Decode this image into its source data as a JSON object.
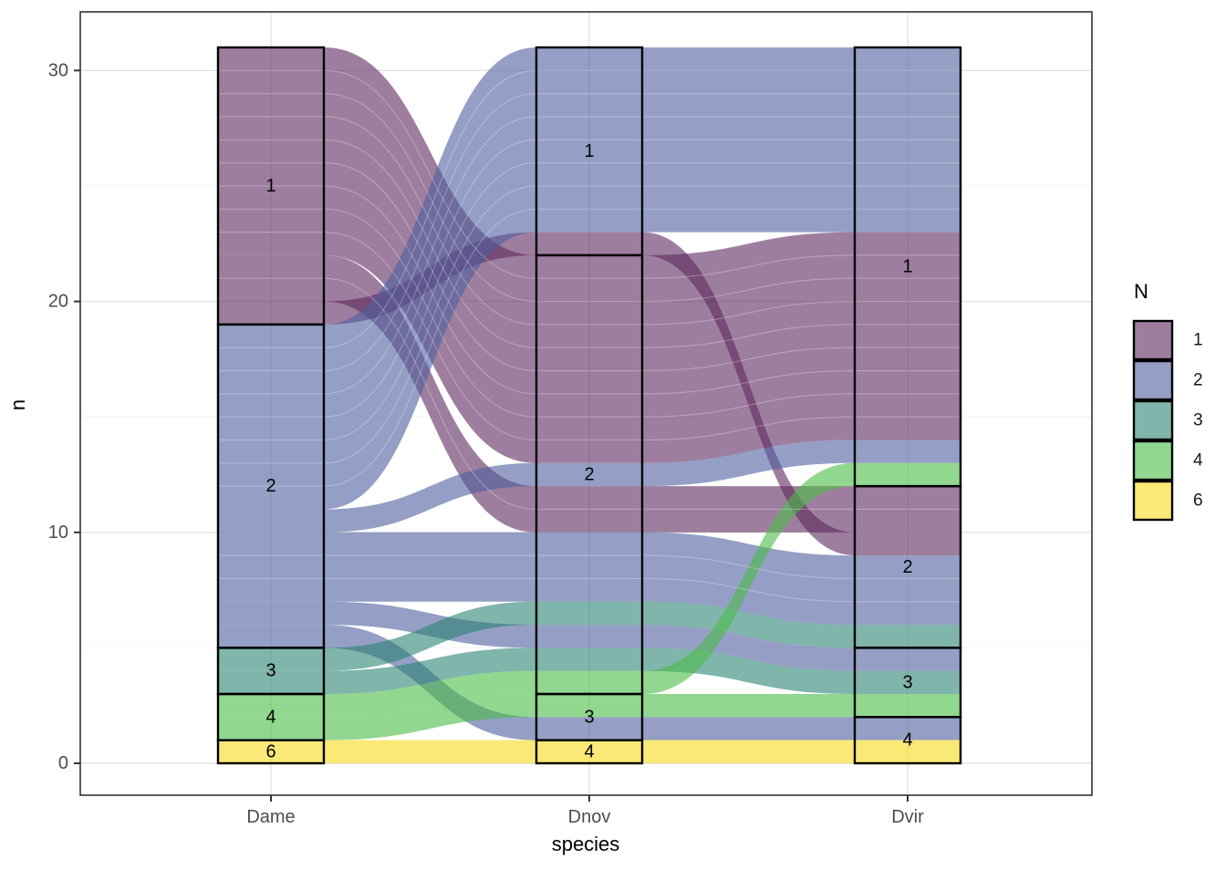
{
  "chart_data": {
    "type": "alluvial",
    "xlabel": "species",
    "ylabel": "n",
    "categories": [
      "Dame",
      "Dnov",
      "Dvir"
    ],
    "y_major_ticks": [
      0,
      10,
      20,
      30
    ],
    "y_minor_ticks": [
      5,
      15,
      25
    ],
    "ylim": [
      0,
      31
    ],
    "grid": true,
    "flow_alpha": 0.6,
    "legend": {
      "title": "N",
      "position": "right",
      "entries": [
        {
          "label": "1",
          "color": "#5D285D"
        },
        {
          "label": "2",
          "color": "#4E5F9E"
        },
        {
          "label": "3",
          "color": "#2A8473"
        },
        {
          "label": "4",
          "color": "#49BC46"
        },
        {
          "label": "6",
          "color": "#F7DA1B"
        }
      ]
    },
    "strata": [
      {
        "axis": "Dame",
        "label": "1",
        "span": [
          19,
          31
        ]
      },
      {
        "axis": "Dame",
        "label": "2",
        "span": [
          5,
          19
        ]
      },
      {
        "axis": "Dame",
        "label": "3",
        "span": [
          3,
          5
        ]
      },
      {
        "axis": "Dame",
        "label": "4",
        "span": [
          1,
          3
        ]
      },
      {
        "axis": "Dame",
        "label": "6",
        "span": [
          0,
          1
        ]
      },
      {
        "axis": "Dnov",
        "label": "1",
        "span": [
          22,
          31
        ]
      },
      {
        "axis": "Dnov",
        "label": "2",
        "span": [
          3,
          22
        ]
      },
      {
        "axis": "Dnov",
        "label": "3",
        "span": [
          1,
          3
        ]
      },
      {
        "axis": "Dnov",
        "label": "4",
        "span": [
          0,
          1
        ]
      },
      {
        "axis": "Dvir",
        "label": "1",
        "span": [
          12,
          31
        ]
      },
      {
        "axis": "Dvir",
        "label": "2",
        "span": [
          5,
          12
        ]
      },
      {
        "axis": "Dvir",
        "label": "3",
        "span": [
          2,
          5
        ]
      },
      {
        "axis": "Dvir",
        "label": "4",
        "span": [
          0,
          2
        ]
      }
    ],
    "alluvia": [
      {
        "N": "1",
        "width": 9,
        "spans": [
          [
            22,
            31
          ],
          [
            13,
            22
          ],
          [
            14,
            23
          ]
        ]
      },
      {
        "N": "1",
        "width": 2,
        "spans": [
          [
            20,
            22
          ],
          [
            10,
            12
          ],
          [
            10,
            12
          ]
        ]
      },
      {
        "N": "1",
        "width": 1,
        "spans": [
          [
            19,
            20
          ],
          [
            22,
            23
          ],
          [
            9,
            10
          ]
        ]
      },
      {
        "N": "2",
        "width": 8,
        "spans": [
          [
            11,
            19
          ],
          [
            23,
            31
          ],
          [
            23,
            31
          ]
        ]
      },
      {
        "N": "2",
        "width": 1,
        "spans": [
          [
            10,
            11
          ],
          [
            12,
            13
          ],
          [
            13,
            14
          ]
        ]
      },
      {
        "N": "2",
        "width": 3,
        "spans": [
          [
            7,
            10
          ],
          [
            7,
            10
          ],
          [
            6,
            9
          ]
        ]
      },
      {
        "N": "2",
        "width": 1,
        "spans": [
          [
            6,
            7
          ],
          [
            5,
            6
          ],
          [
            4,
            5
          ]
        ]
      },
      {
        "N": "2",
        "width": 1,
        "spans": [
          [
            5,
            6
          ],
          [
            1,
            2
          ],
          [
            1,
            2
          ]
        ]
      },
      {
        "N": "3",
        "width": 1,
        "spans": [
          [
            4,
            5
          ],
          [
            6,
            7
          ],
          [
            5,
            6
          ]
        ]
      },
      {
        "N": "3",
        "width": 1,
        "spans": [
          [
            3,
            4
          ],
          [
            4,
            5
          ],
          [
            3,
            4
          ]
        ]
      },
      {
        "N": "4",
        "width": 1,
        "spans": [
          [
            2,
            3
          ],
          [
            3,
            4
          ],
          [
            12,
            13
          ]
        ]
      },
      {
        "N": "4",
        "width": 1,
        "spans": [
          [
            1,
            2
          ],
          [
            2,
            3
          ],
          [
            2,
            3
          ]
        ]
      },
      {
        "N": "6",
        "width": 1,
        "spans": [
          [
            0,
            1
          ],
          [
            0,
            1
          ],
          [
            0,
            1
          ]
        ]
      }
    ]
  }
}
